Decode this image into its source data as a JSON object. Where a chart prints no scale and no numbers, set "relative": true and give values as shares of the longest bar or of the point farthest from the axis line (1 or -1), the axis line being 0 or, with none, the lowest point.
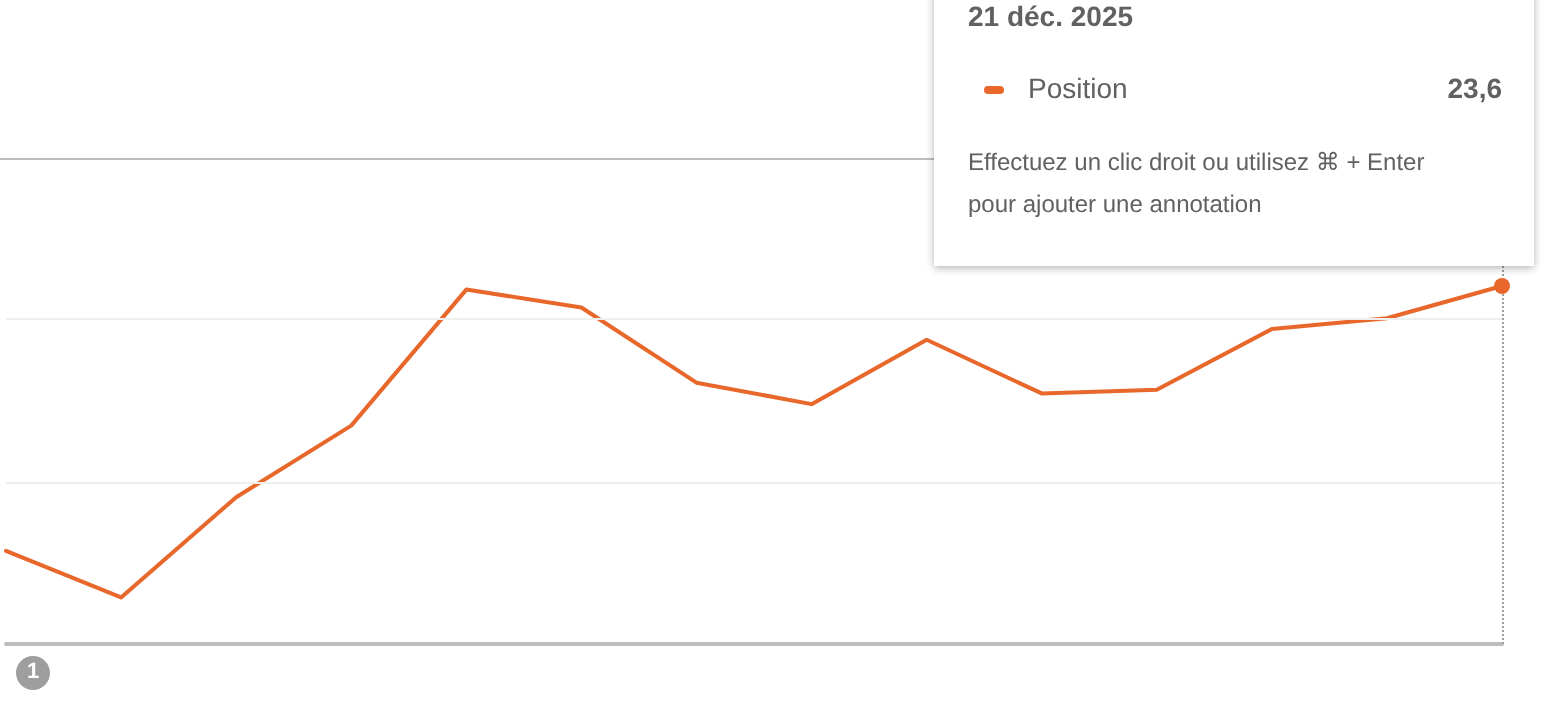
{
  "chart_data": {
    "type": "line",
    "relative": true,
    "ref_lines": [
      {
        "axis": "y",
        "value": 0.45,
        "color": "#eeeeee"
      },
      {
        "axis": "y",
        "value": 0.91,
        "color": "#eeeeee"
      }
    ],
    "marker": "none",
    "line_style": "solid",
    "categories": [
      null,
      null,
      null,
      null,
      null,
      null,
      null,
      null,
      null,
      null,
      null,
      null,
      null,
      null
    ],
    "series": [
      {
        "name": "Position",
        "color": "#e8672a",
        "values": [
          0.26,
          0.13,
          0.41,
          0.61,
          0.99,
          0.94,
          0.73,
          0.67,
          0.85,
          0.7,
          0.71,
          0.88,
          0.91,
          1
        ]
      }
    ],
    "annotations": [
      "21 déc. 2025",
      "23,6",
      "Effectuez un clic droit ou utilisez ⌘ + Enter pour ajouter une annotation",
      "1"
    ]
  }
}
